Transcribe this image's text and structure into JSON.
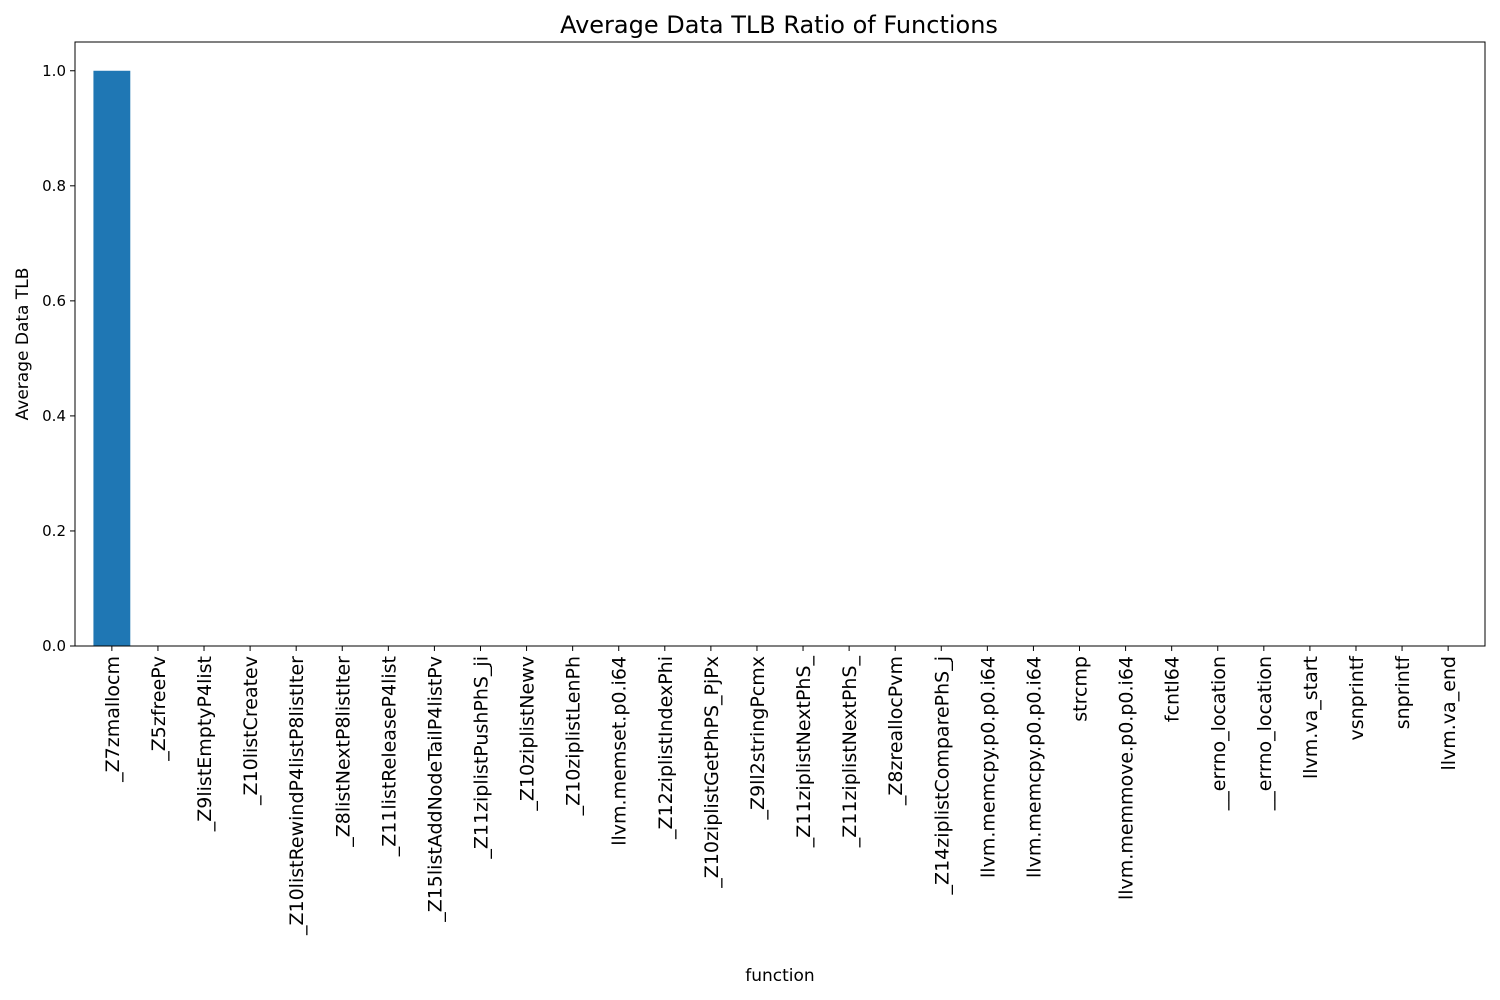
{
  "chart_data": {
    "type": "bar",
    "title": "Average Data TLB Ratio of Functions",
    "xlabel": "function",
    "ylabel": "Average Data TLB",
    "ylim": [
      0,
      1.05
    ],
    "yticks": [
      "0.0",
      "0.2",
      "0.4",
      "0.6",
      "0.8",
      "1.0"
    ],
    "bar_color": "#1f77b4",
    "grid": false,
    "categories": [
      "_Z7zmallocm",
      "_Z5zfreePv",
      "_Z9listEmptyP4list",
      "_Z10listCreatev",
      "_Z10listRewindP4listP8listIter",
      "_Z8listNextP8listIter",
      "_Z11listReleaseP4list",
      "_Z15listAddNodeTailP4listPv",
      "_Z11ziplistPushPhS_ji",
      "_Z10ziplistNewv",
      "_Z10ziplistLenPh",
      "llvm.memset.p0.i64",
      "_Z12ziplistIndexPhi",
      "_Z10ziplistGetPhPS_PjPx",
      "_Z9ll2stringPcmx",
      "_Z11ziplistNextPhS_",
      "_Z11ziplistNextPhS_",
      "_Z8zreallocPvm",
      "_Z14ziplistComparePhS_j",
      "llvm.memcpy.p0.p0.i64",
      "llvm.memcpy.p0.p0.i64",
      "strcmp",
      "llvm.memmove.p0.p0.i64",
      "fcntl64",
      "__errno_location",
      "__errno_location",
      "llvm.va_start",
      "vsnprintf",
      "snprintf",
      "llvm.va_end"
    ],
    "values": [
      1.0,
      0,
      0,
      0,
      0,
      0,
      0,
      0,
      0,
      0,
      0,
      0,
      0,
      0,
      0,
      0,
      0,
      0,
      0,
      0,
      0,
      0,
      0,
      0,
      0,
      0,
      0,
      0,
      0,
      0
    ]
  }
}
